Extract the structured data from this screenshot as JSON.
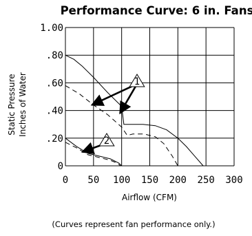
{
  "chart_data": {
    "type": "line",
    "title": "Performance Curve: 6 in. Fans",
    "xlabel": "Airflow (CFM)",
    "ylabel": [
      "Static Pressure",
      "Inches of Water"
    ],
    "xlim": [
      0,
      300
    ],
    "ylim": [
      0,
      1.0
    ],
    "x_ticks": [
      "0",
      "50",
      "100",
      "150",
      "200",
      "250",
      "300"
    ],
    "y_ticks": [
      {
        "value": 0,
        "label": "0"
      },
      {
        "value": 0.2,
        "label": ".20"
      },
      {
        "value": 0.4,
        "label": ".40"
      },
      {
        "value": 0.6,
        "label": ".60"
      },
      {
        "value": 0.8,
        "label": ".80"
      },
      {
        "value": 1.0,
        "label": "1.00"
      }
    ],
    "grid": true,
    "series": [
      {
        "style": "solid",
        "group": "1",
        "x": [
          0,
          15,
          30,
          50,
          75,
          100,
          104,
          118,
          138,
          160,
          180,
          200,
          215,
          230,
          245
        ],
        "y": [
          0.8,
          0.77,
          0.72,
          0.64,
          0.53,
          0.43,
          0.3,
          0.3,
          0.3,
          0.29,
          0.26,
          0.2,
          0.14,
          0.07,
          0.0
        ]
      },
      {
        "style": "dashed",
        "group": "1",
        "x": [
          0,
          25,
          50,
          75,
          100,
          110,
          120,
          140,
          160,
          175,
          190,
          200
        ],
        "y": [
          0.58,
          0.52,
          0.44,
          0.37,
          0.28,
          0.22,
          0.23,
          0.23,
          0.21,
          0.16,
          0.07,
          0.0
        ]
      },
      {
        "style": "solid",
        "group": "2",
        "x": [
          0,
          20,
          40,
          60,
          80,
          95,
          100
        ],
        "y": [
          0.2,
          0.14,
          0.09,
          0.07,
          0.05,
          0.02,
          0.0
        ]
      },
      {
        "style": "dashed",
        "group": "2",
        "x": [
          0,
          20,
          40,
          60,
          80,
          92,
          98
        ],
        "y": [
          0.17,
          0.13,
          0.08,
          0.06,
          0.04,
          0.02,
          0.0
        ]
      }
    ],
    "annotations": [
      {
        "label": "1",
        "points_to": [
          [
            47,
            0.44
          ],
          [
            97,
            0.38
          ]
        ]
      },
      {
        "label": "2",
        "points_to": [
          [
            30,
            0.1
          ]
        ]
      }
    ],
    "footnote": "(Curves represent fan performance only.)"
  }
}
